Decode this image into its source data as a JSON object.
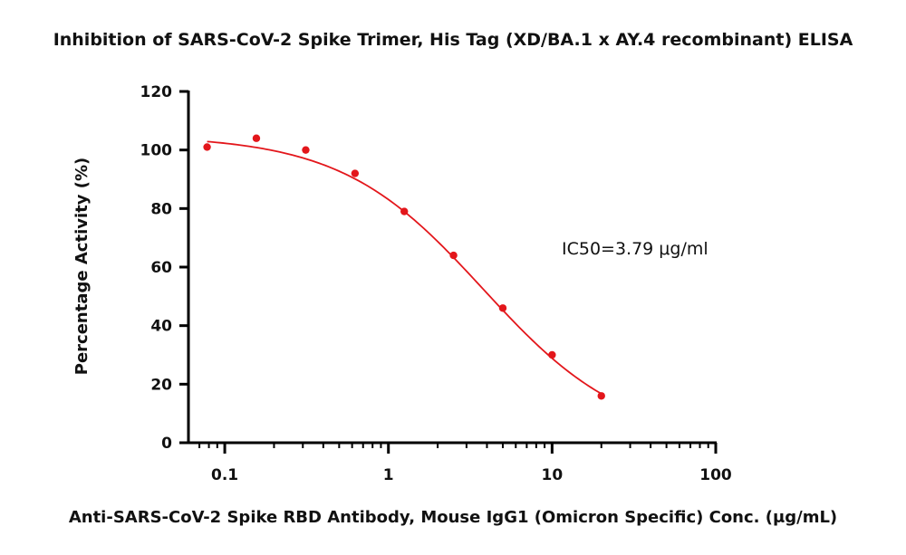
{
  "chart_data": {
    "type": "scatter",
    "title": "Inhibition of SARS-CoV-2 Spike Trimer, His Tag (XD/BA.1 x AY.4 recombinant) ELISA",
    "xlabel": "Anti-SARS-CoV-2 Spike RBD Antibody, Mouse IgG1 (Omicron Specific) Conc. (μg/mL)",
    "ylabel": "Percentage Activity (%)",
    "x_scale": "log",
    "xlim": [
      0.06,
      100
    ],
    "ylim": [
      0,
      120
    ],
    "x_ticks": [
      0.1,
      1,
      10,
      100
    ],
    "x_tick_labels": [
      "0.1",
      "1",
      "10",
      "100"
    ],
    "y_ticks": [
      0,
      20,
      40,
      60,
      80,
      100,
      120
    ],
    "y_tick_labels": [
      "0",
      "20",
      "40",
      "60",
      "80",
      "100",
      "120"
    ],
    "grid": false,
    "series": [
      {
        "color": "#e3161b",
        "x": [
          0.078,
          0.156,
          0.3125,
          0.625,
          1.25,
          2.5,
          5,
          10,
          20
        ],
        "y": [
          101,
          104,
          100,
          92,
          79,
          64,
          46,
          30,
          16
        ]
      }
    ],
    "fit_curve": {
      "color": "#e3161b",
      "model": "4PL",
      "top": 105,
      "bottom": 0,
      "ic50": 3.79,
      "hill": 1.0,
      "x_range": [
        0.078,
        20
      ]
    },
    "annotation": "IC50=3.79 μg/ml"
  }
}
